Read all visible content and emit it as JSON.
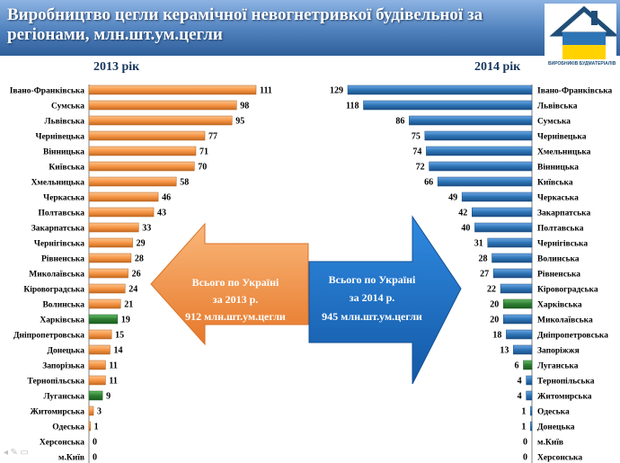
{
  "slide": {
    "title": "Виробництво цегли керамічної невогнетривкої будівельної за регіонами, млн.шт.ум.цегли",
    "logo_text": "ВИРОБНИКІВ БУДМАТЕРІАЛІВ",
    "colors": {
      "header": "#4f81bd",
      "orange_bar": "#f79646",
      "blue_bar": "#2e75b6",
      "green_bar": "#2e7d32",
      "orange_arrow": "#f79646",
      "blue_arrow": "#1f6fc4"
    }
  },
  "arrows": {
    "left": {
      "line1": "Всього по Україні",
      "line2": "за 2013 р.",
      "line3": "912 млн.шт.ум.цегли"
    },
    "right": {
      "line1": "Всього по Україні",
      "line2": "за 2014 р.",
      "line3": "945 млн.шт.ум.цегли"
    }
  },
  "chart_data": [
    {
      "type": "bar",
      "orientation": "horizontal",
      "title": "2013 рік",
      "categories": [
        "Івано-Франківська",
        "Сумська",
        "Львівська",
        "Чернівецька",
        "Вінницька",
        "Київська",
        "Хмельницька",
        "Черкаська",
        "Полтавська",
        "Закарпатська",
        "Чернігівська",
        "Рівненська",
        "Миколаївська",
        "Кіровоградська",
        "Волинська",
        "Харківська",
        "Дніпропетровська",
        "Донецька",
        "Запорізька",
        "Тернопільська",
        "Луганська",
        "Житомирська",
        "Одеська",
        "Херсонська",
        "м.Київ"
      ],
      "values": [
        111,
        98,
        95,
        77,
        71,
        70,
        58,
        46,
        43,
        33,
        29,
        28,
        26,
        24,
        21,
        19,
        15,
        14,
        11,
        11,
        9,
        3,
        1,
        0,
        0
      ],
      "highlight": [
        "Харківська",
        "Луганська"
      ],
      "xlim": [
        0,
        111
      ]
    },
    {
      "type": "bar",
      "orientation": "horizontal",
      "title": "2014 рік",
      "categories": [
        "Івано-Франківська",
        "Львівська",
        "Сумська",
        "Чернівецька",
        "Хмельницька",
        "Вінницька",
        "Київська",
        "Черкаська",
        "Закарпатська",
        "Полтавська",
        "Чернігівська",
        "Волинська",
        "Рівненська",
        "Кіровоградська",
        "Харківська",
        "Миколаївська",
        "Дніпропетровська",
        "Запоріжжя",
        "Луганська",
        "Тернопільська",
        "Житомирська",
        "Одеська",
        "Донецька",
        "м.Київ",
        "Херсонська"
      ],
      "values": [
        129,
        118,
        86,
        75,
        74,
        72,
        66,
        49,
        42,
        40,
        31,
        28,
        27,
        22,
        20,
        20,
        18,
        13,
        6,
        4,
        4,
        1,
        1,
        0,
        0
      ],
      "highlight": [
        "Харківська",
        "Луганська"
      ],
      "xlim": [
        0,
        129
      ]
    }
  ]
}
